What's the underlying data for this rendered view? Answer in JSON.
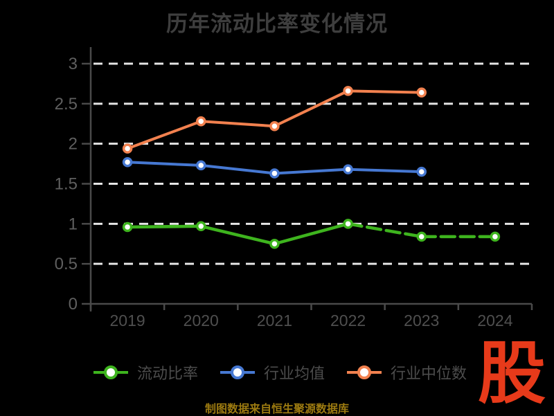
{
  "chart_data": {
    "type": "line",
    "title": "历年流动比率变化情况",
    "x_categories": [
      "2019",
      "2020",
      "2021",
      "2022",
      "2023",
      "2024"
    ],
    "y_ticks": [
      "0",
      "0.5",
      "1",
      "1.5",
      "2",
      "2.5",
      "3"
    ],
    "ylim": [
      0,
      3
    ],
    "grid": "horizontal-dashed",
    "legend_position": "bottom",
    "series": [
      {
        "key": "current-ratio",
        "name": "流动比率",
        "color": "#3eb41e",
        "values": [
          0.96,
          0.97,
          0.75,
          1.0,
          0.84,
          0.84
        ],
        "dash_segments": [
          false,
          false,
          false,
          true,
          true
        ]
      },
      {
        "key": "industry-average",
        "name": "行业均值",
        "color": "#4678d2",
        "values": [
          1.77,
          1.73,
          1.63,
          1.68,
          1.65,
          null
        ],
        "dash_segments": [
          false,
          false,
          false,
          false,
          false
        ]
      },
      {
        "key": "industry-median",
        "name": "行业中位数",
        "color": "#f2814f",
        "values": [
          1.94,
          2.28,
          2.22,
          2.66,
          2.64,
          null
        ],
        "dash_segments": [
          false,
          false,
          false,
          false,
          false
        ]
      }
    ],
    "colors": {
      "background": "#000000",
      "grid_line": "#e5e5e5",
      "axis_line": "#4a4a4a",
      "y_tick_label": "#5f5f5f",
      "x_tick_label": "#4f4f4f",
      "title": "#3e3e3e",
      "marker_fill": "#ffffff"
    }
  },
  "legend": {
    "text_color": "#4c4c4c"
  },
  "footer": {
    "source_text": "制图数据来自恒生聚源数据库",
    "color": "#9c7a10"
  },
  "logo": {
    "text": "股",
    "color": "#e73a1a"
  }
}
